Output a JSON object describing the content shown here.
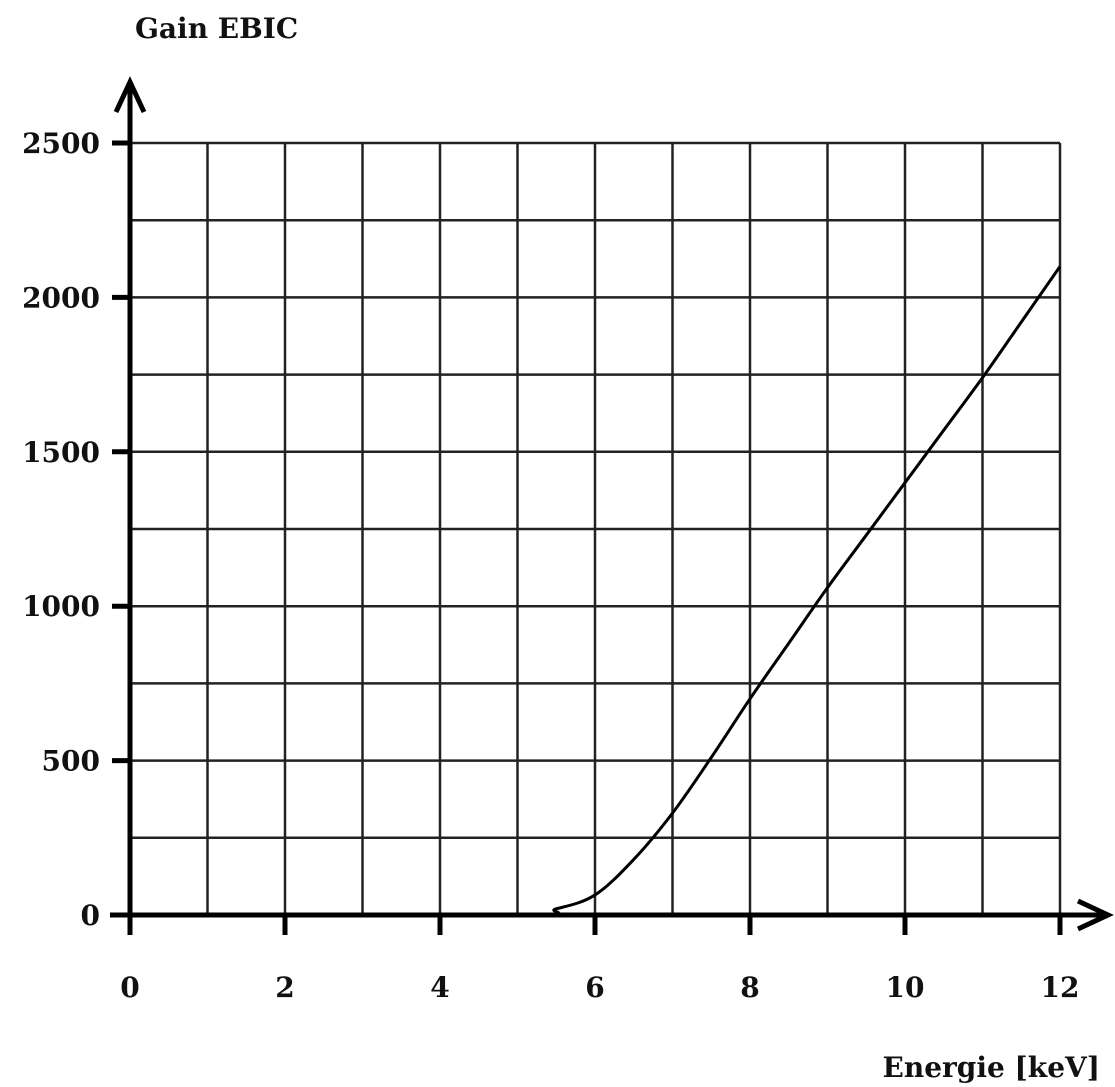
{
  "chart_data": {
    "type": "line",
    "title": "",
    "xlabel": "Energie [keV]",
    "ylabel": "Gain EBIC",
    "xlim": [
      0,
      12
    ],
    "ylim": [
      0,
      2500
    ],
    "x_ticks": [
      0,
      2,
      4,
      6,
      8,
      10,
      12
    ],
    "x_tick_labels": [
      "0",
      "2",
      "4",
      "6",
      "8",
      "10",
      "12"
    ],
    "y_ticks": [
      0,
      500,
      1000,
      1500,
      2000,
      2500
    ],
    "y_tick_labels": [
      "0",
      "500",
      "1000",
      "1500",
      "2000",
      "2500"
    ],
    "x_grid_step": 1,
    "y_grid_step": 250,
    "grid": true,
    "legend": "none",
    "series": [
      {
        "x": [
          0,
          5,
          5.5,
          6,
          6.5,
          7,
          7.5,
          8,
          8.5,
          9,
          9.5,
          10,
          10.5,
          11,
          11.5,
          12
        ],
        "values": [
          0,
          0,
          20,
          65,
          180,
          330,
          510,
          700,
          880,
          1060,
          1230,
          1400,
          1570,
          1740,
          1920,
          2100
        ]
      }
    ]
  }
}
